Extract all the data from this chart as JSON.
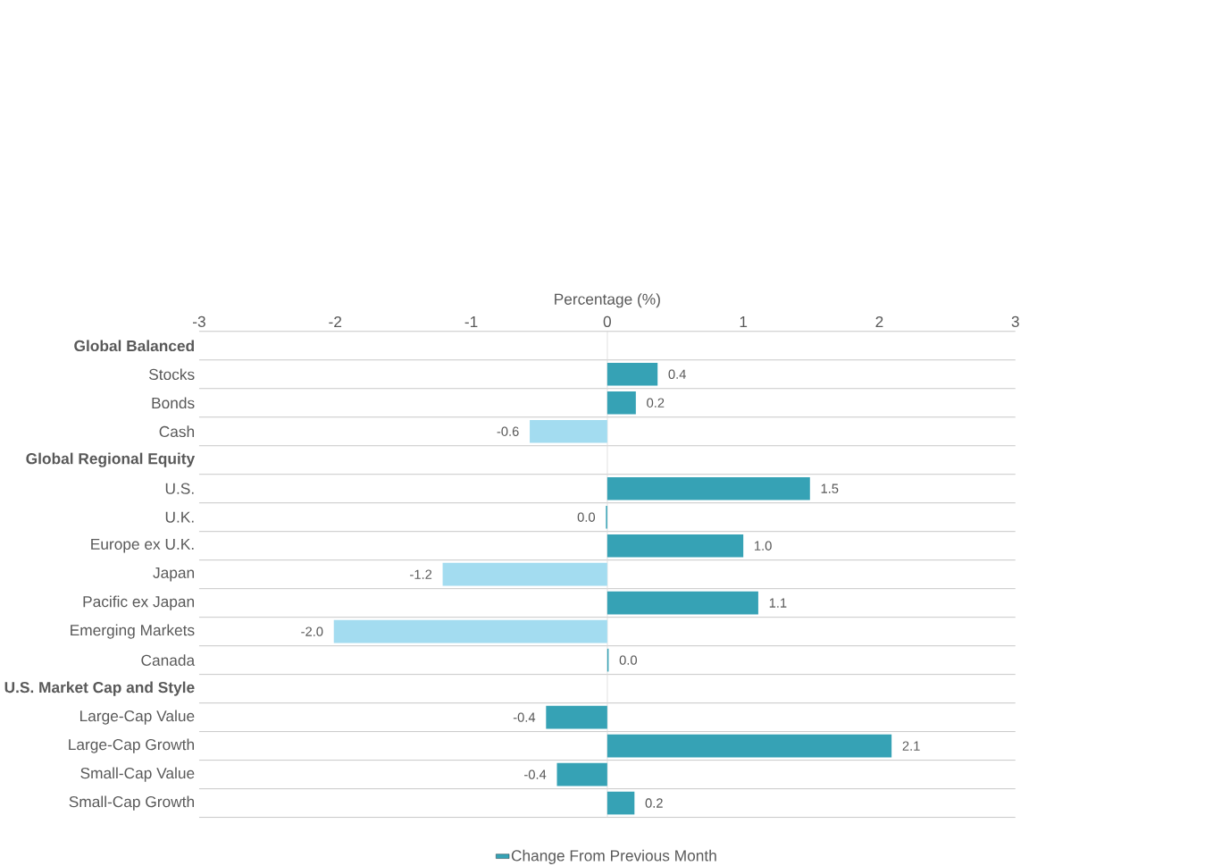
{
  "chart_data": {
    "type": "bar",
    "orientation": "horizontal",
    "xlabel": "Percentage (%)",
    "categories": [
      "Global Balanced",
      "Stocks",
      "Bonds",
      "Cash",
      "Global Regional Equity",
      "U.S.",
      "U.K.",
      "Europe ex U.K.",
      "Japan",
      "Pacific ex Japan",
      "Emerging Markets",
      "Canada",
      "U.S. Market Cap and Style",
      "Large-Cap Value",
      "Large-Cap Growth",
      "Small-Cap Value",
      "Small-Cap Growth"
    ],
    "series": [
      {
        "name": "Change From Previous Month",
        "color": "#36a2b5",
        "values": [
          null,
          0.37,
          0.21,
          -0.57,
          null,
          1.49,
          -0.01,
          1.0,
          -1.21,
          1.11,
          -2.01,
          0.01,
          null,
          -0.45,
          2.09,
          -0.37,
          0.2
        ],
        "colors": [
          "#36a2b5",
          "#36a2b5",
          "#36a2b5",
          "#a3dcf0",
          "#36a2b5",
          "#36a2b5",
          "#36a2b5",
          "#36a2b5",
          "#a3dcf0",
          "#36a2b5",
          "#a3dcf0",
          "#36a2b5",
          "#36a2b5",
          "#36a2b5",
          "#36a2b5",
          "#36a2b5",
          "#36a2b5"
        ],
        "value_labels": [
          null,
          "0.4",
          "0.2",
          "-0.6",
          null,
          "1.5",
          "0.0",
          "1.0",
          "-1.2",
          "1.1",
          "-2.0",
          "0.0",
          null,
          "-0.4",
          "2.1",
          "-0.4",
          "0.2"
        ]
      }
    ],
    "xlim": [
      -3,
      3
    ],
    "xticks": [
      -3,
      -2,
      -1,
      0,
      1,
      2,
      3
    ],
    "grid": "y",
    "legend": "bottom"
  }
}
